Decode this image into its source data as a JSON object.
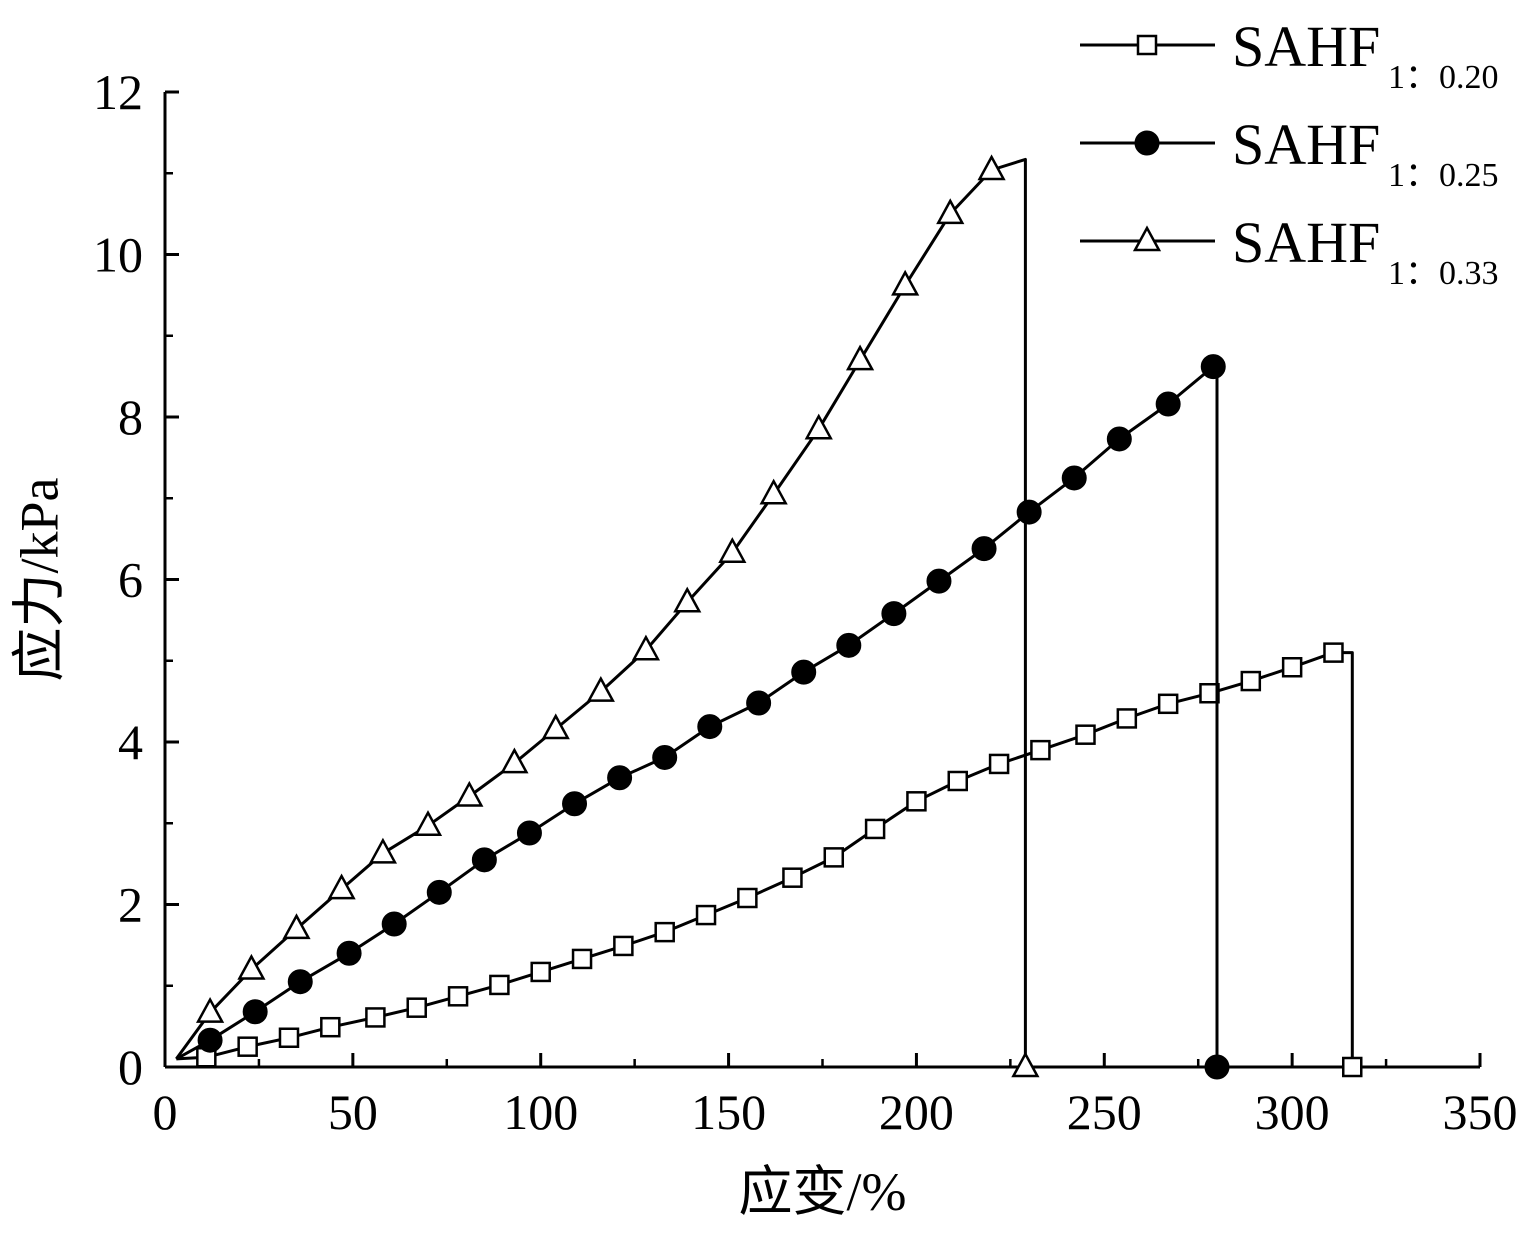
{
  "chart_data": {
    "type": "line",
    "xlabel": "应变/%",
    "ylabel": "应力/kPa",
    "xlim": [
      0,
      350
    ],
    "ylim": [
      0,
      12
    ],
    "xticks": [
      0,
      50,
      100,
      150,
      200,
      250,
      300,
      350
    ],
    "yticks": [
      0,
      2,
      4,
      6,
      8,
      10,
      12
    ],
    "grid": false,
    "legend_position": "top-right",
    "series": [
      {
        "name": "SAHF",
        "name_subscript": "1：0.20",
        "marker": "square-open",
        "color": "#000000",
        "x": [
          11,
          22,
          33,
          44,
          56,
          67,
          78,
          89,
          100,
          111,
          122,
          133,
          144,
          155,
          167,
          178,
          189,
          200,
          211,
          222,
          233,
          245,
          256,
          267,
          278,
          289,
          300,
          311
        ],
        "y": [
          0.12,
          0.25,
          0.36,
          0.49,
          0.61,
          0.73,
          0.87,
          1.01,
          1.17,
          1.33,
          1.49,
          1.66,
          1.87,
          2.08,
          2.33,
          2.58,
          2.93,
          3.27,
          3.52,
          3.73,
          3.9,
          4.09,
          4.29,
          4.47,
          4.6,
          4.75,
          4.92,
          5.1
        ],
        "drop_x": 316
      },
      {
        "name": "SAHF",
        "name_subscript": "1：0.25",
        "marker": "circle-filled",
        "color": "#000000",
        "x": [
          12,
          24,
          36,
          49,
          61,
          73,
          85,
          97,
          109,
          121,
          133,
          145,
          158,
          170,
          182,
          194,
          206,
          218,
          230,
          242,
          254,
          267,
          279
        ],
        "y": [
          0.33,
          0.68,
          1.05,
          1.4,
          1.76,
          2.15,
          2.55,
          2.88,
          3.24,
          3.56,
          3.81,
          4.19,
          4.48,
          4.86,
          5.19,
          5.58,
          5.98,
          6.38,
          6.83,
          7.25,
          7.73,
          8.16,
          8.62
        ],
        "drop_x": 280
      },
      {
        "name": "SAHF",
        "name_subscript": "1：0.33",
        "marker": "triangle-open",
        "color": "#000000",
        "x": [
          12,
          23,
          35,
          47,
          58,
          70,
          81,
          93,
          104,
          116,
          128,
          139,
          151,
          162,
          174,
          185,
          197,
          209,
          220
        ],
        "y": [
          0.67,
          1.2,
          1.7,
          2.19,
          2.63,
          2.97,
          3.33,
          3.74,
          4.16,
          4.62,
          5.13,
          5.72,
          6.33,
          7.05,
          7.85,
          8.7,
          9.62,
          10.5,
          11.04
        ],
        "drop_x": 229,
        "peak": [
          229,
          11.17
        ]
      }
    ]
  }
}
